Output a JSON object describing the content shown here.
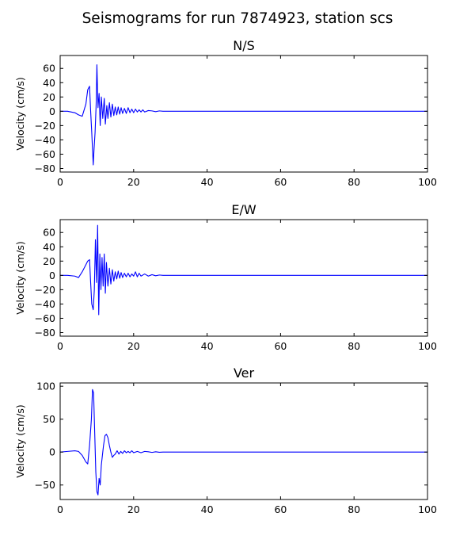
{
  "figure": {
    "title": "Seismograms for run 7874923, station scs"
  },
  "colors": {
    "trace": "#0000ff",
    "axes": "#000000",
    "background": "#ffffff"
  },
  "chart_data": [
    {
      "type": "line",
      "title": "N/S",
      "xlabel": "",
      "ylabel": "Velocity (cm/s)",
      "xlim": [
        0,
        100
      ],
      "ylim": [
        -85,
        78
      ],
      "xticks": [
        0,
        20,
        40,
        60,
        80,
        100
      ],
      "yticks": [
        60,
        40,
        20,
        0,
        -20,
        -40,
        -60,
        -80
      ],
      "grid": false,
      "series": [
        {
          "x": [
            0,
            2,
            4,
            5,
            6,
            7,
            7.5,
            8,
            8.3,
            8.6,
            9,
            9.2,
            9.5,
            9.8,
            10,
            10.3,
            10.6,
            10.9,
            11.2,
            11.6,
            12,
            12.3,
            12.7,
            13,
            13.4,
            13.8,
            14.2,
            14.6,
            15,
            15.4,
            15.8,
            16.2,
            16.6,
            17,
            17.5,
            18,
            18.5,
            19,
            19.5,
            20,
            20.5,
            21,
            21.5,
            22,
            22.5,
            23,
            24,
            25,
            26,
            27,
            28,
            30,
            35,
            40,
            100
          ],
          "y": [
            0,
            0,
            -2,
            -5,
            -7,
            10,
            30,
            35,
            0,
            -30,
            -75,
            -55,
            -30,
            10,
            65,
            5,
            25,
            -20,
            20,
            -10,
            18,
            -18,
            8,
            -10,
            12,
            -8,
            10,
            -6,
            6,
            -5,
            6,
            -4,
            5,
            -3,
            4,
            -3,
            5,
            -2,
            3,
            -2,
            3,
            -1,
            2,
            -1,
            2,
            -1,
            1,
            0.5,
            -0.5,
            0.5,
            0,
            0,
            0,
            0,
            0
          ]
        }
      ]
    },
    {
      "type": "line",
      "title": "E/W",
      "xlabel": "",
      "ylabel": "Velocity (cm/s)",
      "xlim": [
        0,
        100
      ],
      "ylim": [
        -85,
        78
      ],
      "xticks": [
        0,
        20,
        40,
        60,
        80,
        100
      ],
      "yticks": [
        60,
        40,
        20,
        0,
        -20,
        -40,
        -60,
        -80
      ],
      "grid": false,
      "series": [
        {
          "x": [
            0,
            2,
            4,
            5,
            6,
            7,
            7.5,
            8,
            8.3,
            8.6,
            9,
            9.3,
            9.6,
            9.9,
            10.2,
            10.5,
            10.8,
            11.1,
            11.4,
            11.7,
            12,
            12.3,
            12.6,
            13,
            13.4,
            13.8,
            14.2,
            14.6,
            15,
            15.4,
            15.8,
            16.2,
            16.6,
            17,
            17.5,
            18,
            18.5,
            19,
            19.5,
            20,
            20.5,
            21,
            21.5,
            22,
            23,
            24,
            25,
            26,
            27,
            28,
            30,
            35,
            40,
            100
          ],
          "y": [
            0,
            0,
            -1,
            -3,
            5,
            15,
            20,
            22,
            -10,
            -40,
            -48,
            -20,
            50,
            -10,
            70,
            -55,
            30,
            -20,
            25,
            -15,
            30,
            -25,
            18,
            -15,
            10,
            -12,
            8,
            -8,
            5,
            -5,
            6,
            -4,
            4,
            -3,
            3,
            -2,
            3,
            -2,
            2,
            -1,
            5,
            -2,
            3,
            -1,
            2,
            -1,
            1,
            -0.5,
            0.5,
            0,
            0,
            0,
            0,
            0
          ]
        }
      ]
    },
    {
      "type": "line",
      "title": "Ver",
      "xlabel": "",
      "ylabel": "Velocity (cm/s)",
      "xlim": [
        0,
        100
      ],
      "ylim": [
        -72,
        105
      ],
      "xticks": [
        0,
        20,
        40,
        60,
        80,
        100
      ],
      "yticks": [
        100,
        50,
        0,
        -50
      ],
      "grid": false,
      "series": [
        {
          "x": [
            0,
            2,
            4,
            5,
            6,
            7,
            7.5,
            8,
            8.5,
            8.8,
            9.1,
            9.4,
            9.7,
            10,
            10.3,
            10.6,
            10.9,
            11.2,
            11.5,
            11.8,
            12.2,
            12.6,
            13,
            13.4,
            13.8,
            14.2,
            14.6,
            15,
            15.5,
            16,
            16.5,
            17,
            17.5,
            18,
            18.5,
            19,
            19.5,
            20,
            21,
            22,
            23,
            24,
            25,
            26,
            27,
            28,
            30,
            35,
            40,
            100
          ],
          "y": [
            0,
            1,
            2,
            1,
            -5,
            -15,
            -18,
            10,
            50,
            95,
            90,
            30,
            -30,
            -60,
            -65,
            -40,
            -50,
            -20,
            -5,
            10,
            25,
            27,
            22,
            10,
            0,
            -8,
            -5,
            -3,
            2,
            -3,
            1,
            -2,
            2,
            -1,
            1,
            -1,
            2,
            -1,
            1,
            -1,
            1,
            0.5,
            -0.5,
            0.5,
            -0.3,
            0,
            0,
            0,
            0,
            0
          ]
        }
      ]
    }
  ]
}
